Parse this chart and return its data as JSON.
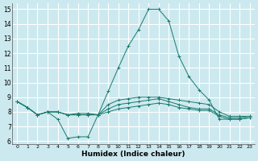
{
  "xlabel": "Humidex (Indice chaleur)",
  "ylabel": "",
  "xlim": [
    -0.5,
    23.5
  ],
  "ylim": [
    5.8,
    15.4
  ],
  "yticks": [
    6,
    7,
    8,
    9,
    10,
    11,
    12,
    13,
    14,
    15
  ],
  "xticks": [
    0,
    1,
    2,
    3,
    4,
    5,
    6,
    7,
    8,
    9,
    10,
    11,
    12,
    13,
    14,
    15,
    16,
    17,
    18,
    19,
    20,
    21,
    22,
    23
  ],
  "background_color": "#cce9ef",
  "grid_color": "#ffffff",
  "line_color": "#1a7a6e",
  "lines": [
    {
      "x": [
        0,
        1,
        2,
        3,
        4,
        5,
        6,
        7,
        8,
        9,
        10,
        11,
        12,
        13,
        14,
        15,
        16,
        17,
        18,
        19,
        20,
        21,
        22,
        23
      ],
      "y": [
        8.7,
        8.3,
        7.8,
        8.0,
        7.5,
        6.2,
        6.3,
        6.3,
        7.8,
        9.4,
        11.0,
        12.5,
        13.6,
        15.0,
        15.0,
        14.2,
        11.8,
        10.4,
        9.5,
        8.8,
        7.5,
        7.5,
        7.5,
        7.6
      ],
      "marker": "+"
    },
    {
      "x": [
        0,
        1,
        2,
        3,
        4,
        5,
        6,
        7,
        8,
        9,
        10,
        11,
        12,
        13,
        14,
        15,
        16,
        17,
        18,
        19,
        20,
        21,
        22,
        23
      ],
      "y": [
        8.7,
        8.3,
        7.8,
        8.0,
        8.0,
        7.8,
        7.8,
        7.8,
        7.8,
        8.2,
        8.5,
        8.6,
        8.7,
        8.8,
        8.9,
        8.7,
        8.5,
        8.3,
        8.2,
        8.2,
        7.8,
        7.6,
        7.6,
        7.7
      ],
      "marker": "+"
    },
    {
      "x": [
        0,
        1,
        2,
        3,
        4,
        5,
        6,
        7,
        8,
        9,
        10,
        11,
        12,
        13,
        14,
        15,
        16,
        17,
        18,
        19,
        20,
        21,
        22,
        23
      ],
      "y": [
        8.7,
        8.3,
        7.8,
        8.0,
        8.0,
        7.8,
        7.8,
        7.8,
        7.8,
        8.5,
        8.8,
        8.9,
        9.0,
        9.0,
        9.0,
        8.9,
        8.8,
        8.7,
        8.6,
        8.5,
        8.0,
        7.7,
        7.7,
        7.7
      ],
      "marker": "+"
    },
    {
      "x": [
        0,
        1,
        2,
        3,
        4,
        5,
        6,
        7,
        8,
        9,
        10,
        11,
        12,
        13,
        14,
        15,
        16,
        17,
        18,
        19,
        20,
        21,
        22,
        23
      ],
      "y": [
        8.7,
        8.3,
        7.8,
        8.0,
        8.0,
        7.8,
        7.9,
        7.9,
        7.8,
        8.0,
        8.2,
        8.3,
        8.4,
        8.5,
        8.6,
        8.5,
        8.3,
        8.2,
        8.1,
        8.1,
        7.7,
        7.5,
        7.5,
        7.6
      ],
      "marker": "+"
    }
  ]
}
